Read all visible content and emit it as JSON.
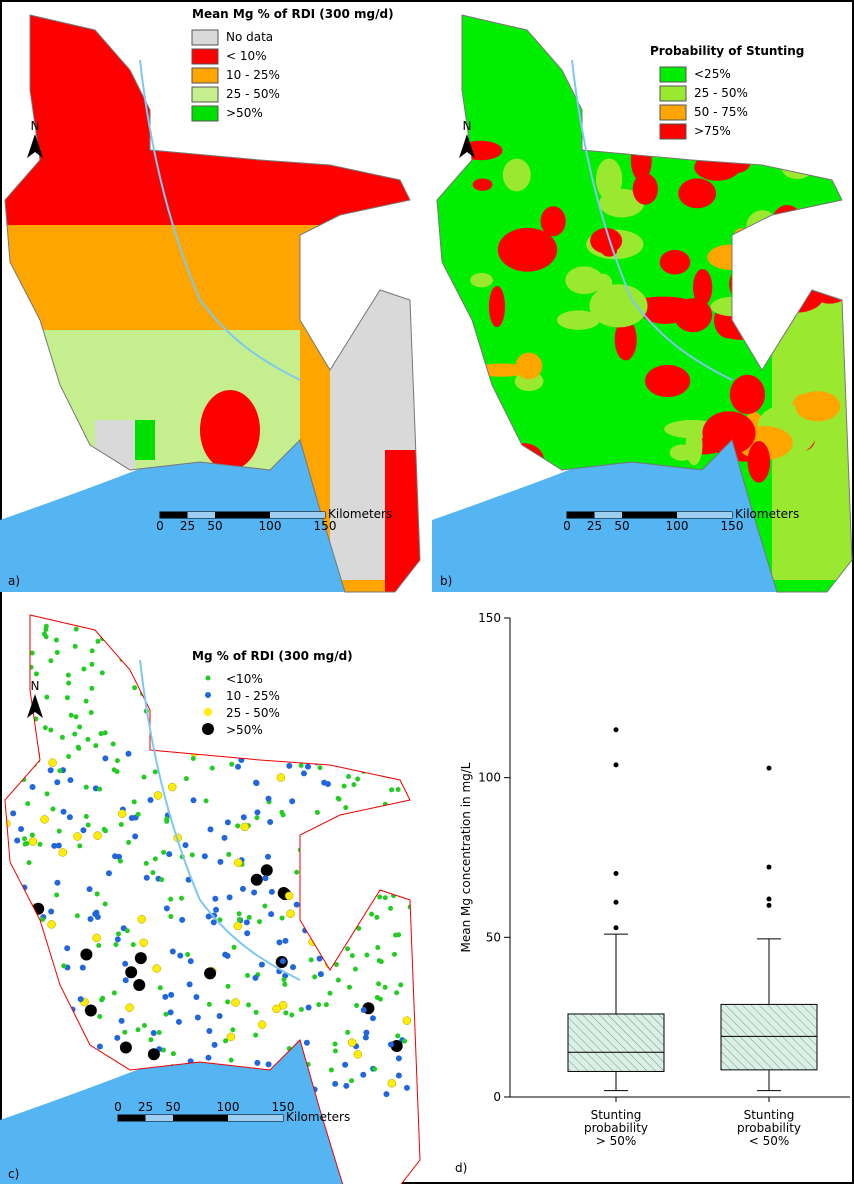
{
  "maps": [
    {
      "label": "a)",
      "legend_title": "Mean Mg % of RDI (300 mg/d)",
      "north": "N",
      "legend": [
        {
          "name": "No data",
          "color": "#d9d9d9"
        },
        {
          "name": "< 10%",
          "color": "#ff0000"
        },
        {
          "name": "10 - 25%",
          "color": "#ffa500"
        },
        {
          "name": "25 - 50%",
          "color": "#c5ef8e"
        },
        {
          "name": ">50%",
          "color": "#00e000"
        }
      ],
      "scale": {
        "unit": "Kilometers",
        "ticks": [
          0,
          25,
          50,
          100,
          150
        ]
      }
    },
    {
      "label": "b)",
      "legend_title": "Probability of Stunting",
      "north": "N",
      "legend": [
        {
          "name": "<25%",
          "color": "#00ee00"
        },
        {
          "name": "25 - 50%",
          "color": "#9be830"
        },
        {
          "name": "50 - 75%",
          "color": "#ffa500"
        },
        {
          "name": ">75%",
          "color": "#ff0000"
        }
      ],
      "scale": {
        "unit": "Kilometers",
        "ticks": [
          0,
          25,
          50,
          100,
          150
        ]
      }
    },
    {
      "label": "c)",
      "legend_title": "Mg % of RDI (300 mg/d)",
      "north": "N",
      "legend": [
        {
          "name": "<10%",
          "color": "#22cc22"
        },
        {
          "name": "10 - 25%",
          "color": "#2266dd"
        },
        {
          "name": "25 - 50%",
          "color": "#ffee00"
        },
        {
          "name": ">50%",
          "color": "#000000"
        }
      ],
      "scale": {
        "unit": "Kilometers",
        "ticks": [
          0,
          25,
          50,
          100,
          150
        ]
      }
    }
  ],
  "chart_data": {
    "type": "box",
    "label": "d)",
    "y_label": "Mean Mg concentration in mg/L",
    "categories": [
      "Stunting probability > 50%",
      "Stunting probability < 50%"
    ],
    "boxes": [
      {
        "whisker_low": 2,
        "q1": 8,
        "median": 14,
        "q3": 26,
        "whisker_high": 51,
        "outliers": [
          53,
          61,
          70,
          104,
          115
        ]
      },
      {
        "whisker_low": 2,
        "q1": 8.5,
        "median": 19,
        "q3": 29,
        "whisker_high": 49.5,
        "outliers": [
          60,
          62,
          72,
          103
        ]
      }
    ],
    "ylim": [
      0,
      150
    ],
    "yticks": [
      0,
      50,
      100,
      150
    ]
  }
}
